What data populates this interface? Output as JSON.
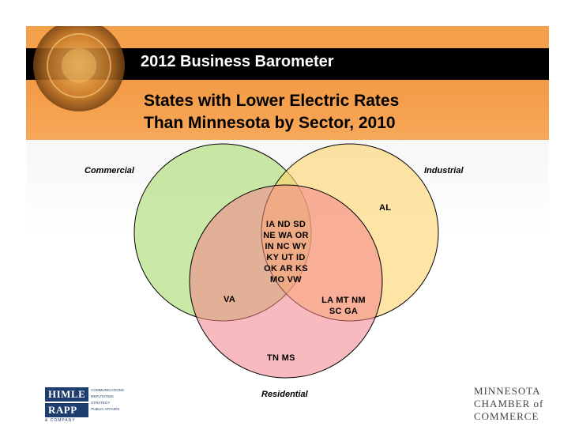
{
  "slide": {
    "title": "2012 Business Barometer",
    "subtitle_line1": "States with Lower Electric Rates",
    "subtitle_line2": "Than Minnesota by Sector, 2010"
  },
  "venn": {
    "sets": {
      "commercial": {
        "label": "Commercial",
        "color": "#a6d96a"
      },
      "industrial": {
        "label": "Industrial",
        "color": "#fdd36b"
      },
      "residential": {
        "label": "Residential",
        "color": "#f4828a"
      }
    },
    "regions": {
      "industrial_only": [
        "AL"
      ],
      "all_three": [
        "IA  ND  SD",
        "NE  WA  OR",
        "IN  NC  WY",
        "KY  UT  ID",
        "OK  AR  KS",
        "MO  VW"
      ],
      "commercial_residential": [
        "VA"
      ],
      "industrial_residential": [
        "LA  MT  NM",
        "SC  GA"
      ],
      "residential_only": [
        "TN  MS"
      ]
    }
  },
  "logos": {
    "himle_rapp": {
      "word1": "HIMLE",
      "word2": "RAPP",
      "tagline": "& COMPANY",
      "services": [
        "COMMUNICATIONS",
        "REPUTATION",
        "STRATEGY",
        "PUBLIC AFFAIRS"
      ]
    },
    "mn_chamber": {
      "line1": "MINNESOTA",
      "line2": "CHAMBER of",
      "line3": "COMMERCE"
    }
  }
}
